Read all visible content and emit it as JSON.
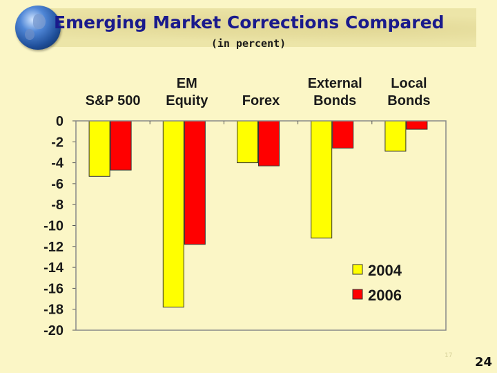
{
  "slide": {
    "title": "Emerging Market Corrections Compared",
    "subtitle": "(in percent)",
    "footnote": "17",
    "page_number": "24"
  },
  "colors": {
    "background": "#fbf6c6",
    "series_2004": "#ffff00",
    "series_2006": "#ff0000",
    "title": "#1a1a8c"
  },
  "chart_data": {
    "type": "bar",
    "categories": [
      [
        "S&P 500"
      ],
      [
        "EM",
        "Equity"
      ],
      [
        "Forex"
      ],
      [
        "External",
        "Bonds"
      ],
      [
        "Local",
        "Bonds"
      ]
    ],
    "series": [
      {
        "name": "2004",
        "values": [
          -5.3,
          -17.8,
          -4.0,
          -11.2,
          -2.9
        ]
      },
      {
        "name": "2006",
        "values": [
          -4.7,
          -11.8,
          -4.3,
          -2.6,
          -0.8
        ]
      }
    ],
    "ylim": [
      -20,
      0
    ],
    "yticks": [
      0,
      -2,
      -4,
      -6,
      -8,
      -10,
      -12,
      -14,
      -16,
      -18,
      -20
    ],
    "category_labels_position": "top",
    "grid": false,
    "legend": "bottom-right"
  }
}
